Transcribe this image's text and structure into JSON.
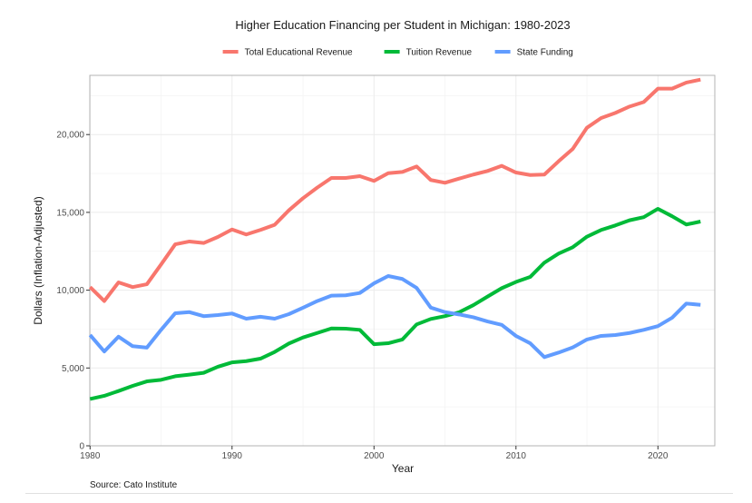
{
  "chart_data": {
    "type": "line",
    "title": "Higher Education Financing per Student in Michigan: 1980-2023",
    "xlabel": "Year",
    "ylabel": "Dollars (Inflation-Adjusted)",
    "caption": "Source: Cato Institute",
    "xlim": [
      1980,
      2023
    ],
    "ylim": [
      0,
      23600
    ],
    "x_ticks": [
      1980,
      1990,
      2000,
      2010,
      2020
    ],
    "x_tick_labels": [
      "1980",
      "1990",
      "2000",
      "2010",
      "2020"
    ],
    "y_ticks": [
      0,
      5000,
      10000,
      15000,
      20000
    ],
    "y_tick_labels": [
      "0",
      "5,000",
      "10,000",
      "15,000",
      "20,000"
    ],
    "grid": true,
    "legend_position": "top",
    "x": [
      1980,
      1981,
      1982,
      1983,
      1984,
      1985,
      1986,
      1987,
      1988,
      1989,
      1990,
      1991,
      1992,
      1993,
      1994,
      1995,
      1996,
      1997,
      1998,
      1999,
      2000,
      2001,
      2002,
      2003,
      2004,
      2005,
      2006,
      2007,
      2008,
      2009,
      2010,
      2011,
      2012,
      2013,
      2014,
      2015,
      2016,
      2017,
      2018,
      2019,
      2020,
      2021,
      2022,
      2023
    ],
    "series": [
      {
        "name": "Total Educational Revenue",
        "color": "#F8766D",
        "values": [
          10200,
          9300,
          10500,
          10200,
          10380,
          11650,
          12950,
          13130,
          13030,
          13420,
          13900,
          13580,
          13870,
          14200,
          15130,
          15910,
          16590,
          17210,
          17210,
          17330,
          17020,
          17520,
          17600,
          17950,
          17080,
          16900,
          17170,
          17430,
          17660,
          17990,
          17560,
          17400,
          17430,
          18280,
          19080,
          20440,
          21060,
          21390,
          21800,
          22090,
          22950,
          22950,
          23340,
          23530
        ]
      },
      {
        "name": "Tuition Revenue",
        "color": "#00BA38",
        "values": [
          3010,
          3210,
          3520,
          3850,
          4140,
          4240,
          4470,
          4570,
          4690,
          5080,
          5360,
          5440,
          5600,
          6030,
          6570,
          6960,
          7250,
          7540,
          7530,
          7450,
          6530,
          6590,
          6830,
          7800,
          8150,
          8330,
          8580,
          9040,
          9590,
          10130,
          10530,
          10850,
          11770,
          12350,
          12760,
          13440,
          13870,
          14160,
          14490,
          14690,
          15230,
          14750,
          14220,
          14410
        ]
      },
      {
        "name": "State Funding",
        "color": "#619CFF",
        "values": [
          7120,
          6060,
          7010,
          6400,
          6310,
          7450,
          8520,
          8590,
          8330,
          8400,
          8500,
          8170,
          8290,
          8170,
          8460,
          8870,
          9300,
          9650,
          9670,
          9820,
          10440,
          10910,
          10720,
          10150,
          8880,
          8590,
          8440,
          8260,
          7990,
          7770,
          7060,
          6590,
          5700,
          5990,
          6320,
          6830,
          7060,
          7120,
          7250,
          7450,
          7690,
          8230,
          9140,
          9060
        ]
      }
    ]
  }
}
